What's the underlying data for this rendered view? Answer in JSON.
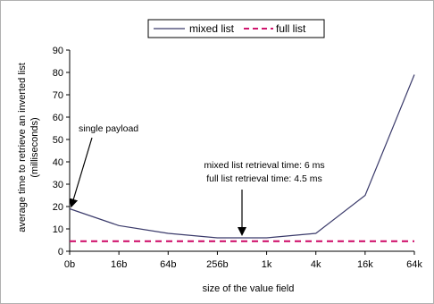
{
  "chart_data": {
    "type": "line",
    "title": "",
    "xlabel": "size of the value field",
    "ylabel": "average time to retrieve an inverted list (milliseconds)",
    "ylabel_lines": [
      "average time to retrieve an inverted list",
      "(milliseconds)"
    ],
    "categories": [
      "0b",
      "16b",
      "64b",
      "256b",
      "1k",
      "4k",
      "16k",
      "64k"
    ],
    "ylim": [
      0,
      90
    ],
    "yticks": [
      0,
      10,
      20,
      30,
      40,
      50,
      60,
      70,
      80,
      90
    ],
    "grid": false,
    "legend_position": "top-center",
    "series": [
      {
        "name": "mixed list",
        "color": "#3b3b6b",
        "style": "solid",
        "values": [
          19,
          11.5,
          8,
          6,
          6,
          8,
          25,
          79
        ]
      },
      {
        "name": "full list",
        "color": "#d0166e",
        "style": "dashed",
        "values": [
          4.5,
          4.5,
          4.5,
          4.5,
          4.5,
          4.5,
          4.5,
          4.5
        ]
      }
    ],
    "annotations": [
      {
        "text": "single payload",
        "target_category": "0b",
        "target_value": 19
      },
      {
        "lines": [
          "mixed list retrieval time: 6 ms",
          "full list retrieval time: 4.5 ms"
        ],
        "target_category_position": 3.5,
        "target_value": 6
      }
    ]
  }
}
